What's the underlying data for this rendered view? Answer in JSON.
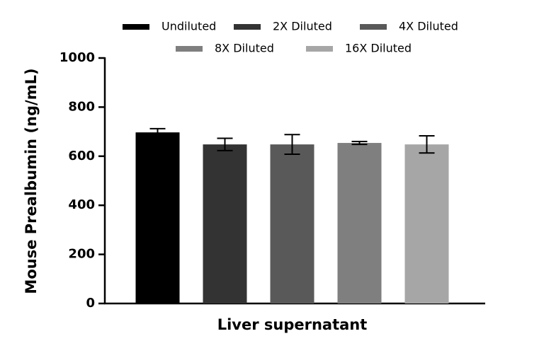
{
  "chart_data": {
    "type": "bar",
    "y_label": "Mouse Prealbumin (ng/mL)",
    "categories": [
      "Liver supernatant"
    ],
    "series": [
      {
        "name": "Undiluted",
        "color": "#000000",
        "values": [
          697
        ],
        "errors": [
          15
        ]
      },
      {
        "name": "2X Diluted",
        "color": "#333333",
        "values": [
          648
        ],
        "errors": [
          25
        ]
      },
      {
        "name": "4X Diluted",
        "color": "#595959",
        "values": [
          648
        ],
        "errors": [
          40
        ]
      },
      {
        "name": "8X Diluted",
        "color": "#7f7f7f",
        "values": [
          654
        ],
        "errors": [
          6
        ]
      },
      {
        "name": "16X Diluted",
        "color": "#a6a6a6",
        "values": [
          648
        ],
        "errors": [
          35
        ]
      }
    ],
    "ylim": [
      0,
      1000
    ],
    "yticks": [
      0,
      200,
      400,
      600,
      800,
      1000
    ],
    "grid": false
  }
}
